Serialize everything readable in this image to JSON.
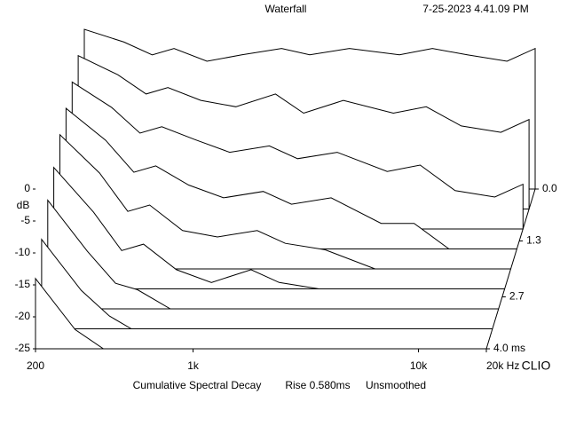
{
  "chart_data": {
    "type": "waterfall",
    "title": "Waterfall",
    "timestamp": "7-25-2023 4.41.09 PM",
    "y_label": "dB",
    "brand": "CLIO",
    "footer": [
      "Cumulative Spectral Decay",
      "Rise 0.580ms",
      "Unsmoothed"
    ],
    "log_x": true,
    "color": "#000000",
    "xlim": [
      200,
      20000
    ],
    "xticks": [
      {
        "value": 200,
        "label": "200"
      },
      {
        "value": 1000,
        "label": "1k"
      },
      {
        "value": 10000,
        "label": "10k"
      },
      {
        "value": 20000,
        "label": "20k Hz"
      }
    ],
    "ylim": [
      -25,
      0
    ],
    "yticks": [
      0,
      -5,
      -10,
      -15,
      -20,
      -25
    ],
    "tlim": [
      0,
      4
    ],
    "tticks": [
      {
        "value": 0,
        "label": "0.0"
      },
      1.3,
      2.7,
      {
        "value": 4,
        "label": "4.0 ms"
      }
    ],
    "x": [
      200,
      300,
      400,
      500,
      700,
      1000,
      1500,
      2000,
      3000,
      5000,
      7000,
      10000,
      15000,
      20000
    ],
    "slices": [
      {
        "t": 0,
        "values": [
          0,
          -2,
          -4,
          -3,
          -5,
          -4,
          -3,
          -4,
          -3,
          -4,
          -3,
          -4,
          -5,
          -3
        ]
      },
      {
        "t": 0.5,
        "values": [
          -1,
          -4,
          -7,
          -6,
          -8,
          -9,
          -7,
          -10,
          -8,
          -10,
          -9,
          -12,
          -13,
          -11
        ]
      },
      {
        "t": 1,
        "values": [
          -2,
          -6,
          -10,
          -9,
          -11,
          -13,
          -12,
          -14,
          -13,
          -16,
          -15,
          -19,
          -20,
          -18
        ]
      },
      {
        "t": 1.5,
        "values": [
          -3,
          -8,
          -13,
          -12,
          -15,
          -17,
          -16,
          -18,
          -17,
          -21,
          -21,
          -25,
          -25,
          -25
        ]
      },
      {
        "t": 2,
        "values": [
          -4,
          -10,
          -16,
          -15,
          -19,
          -20,
          -19,
          -21,
          -22,
          -25,
          -25,
          -25,
          -25,
          -25
        ]
      },
      {
        "t": 2.5,
        "values": [
          -6,
          -13,
          -19,
          -18,
          -22,
          -24,
          -22,
          -24,
          -25,
          -25,
          -25,
          -25,
          -25,
          -25
        ]
      },
      {
        "t": 3,
        "values": [
          -8,
          -16,
          -21,
          -22,
          -25,
          -25,
          -25,
          -25,
          -25,
          -25,
          -25,
          -25,
          -25,
          -25
        ]
      },
      {
        "t": 3.5,
        "values": [
          -11,
          -19,
          -23,
          -25,
          -25,
          -25,
          -25,
          -25,
          -25,
          -25,
          -25,
          -25,
          -25,
          -25
        ]
      },
      {
        "t": 4,
        "values": [
          -14,
          -22,
          -25,
          -25,
          -25,
          -25,
          -25,
          -25,
          -25,
          -25,
          -25,
          -25,
          -25,
          -25
        ]
      }
    ]
  }
}
